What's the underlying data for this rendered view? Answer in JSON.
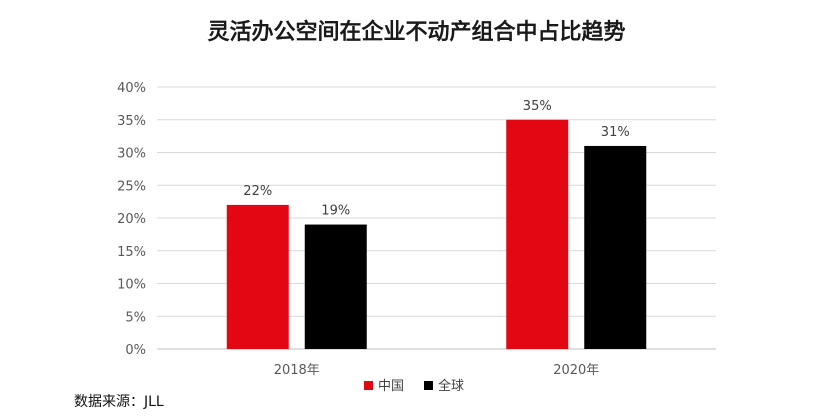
{
  "chart_data": {
    "type": "bar",
    "title": "灵活办公空间在企业不动产组合中占比趋势",
    "categories": [
      "2018年",
      "2020年"
    ],
    "series": [
      {
        "name": "中国",
        "values": [
          22,
          35
        ],
        "labels": [
          "22%",
          "35%"
        ],
        "color": "#e30613"
      },
      {
        "name": "全球",
        "values": [
          19,
          31
        ],
        "labels": [
          "19%",
          "31%"
        ],
        "color": "#000000"
      }
    ],
    "y_ticks": [
      "0%",
      "5%",
      "10%",
      "15%",
      "20%",
      "25%",
      "30%",
      "35%",
      "40%"
    ],
    "ylim": [
      0,
      40
    ],
    "grid": true,
    "legend_position": "bottom"
  },
  "source": "数据来源：JLL"
}
